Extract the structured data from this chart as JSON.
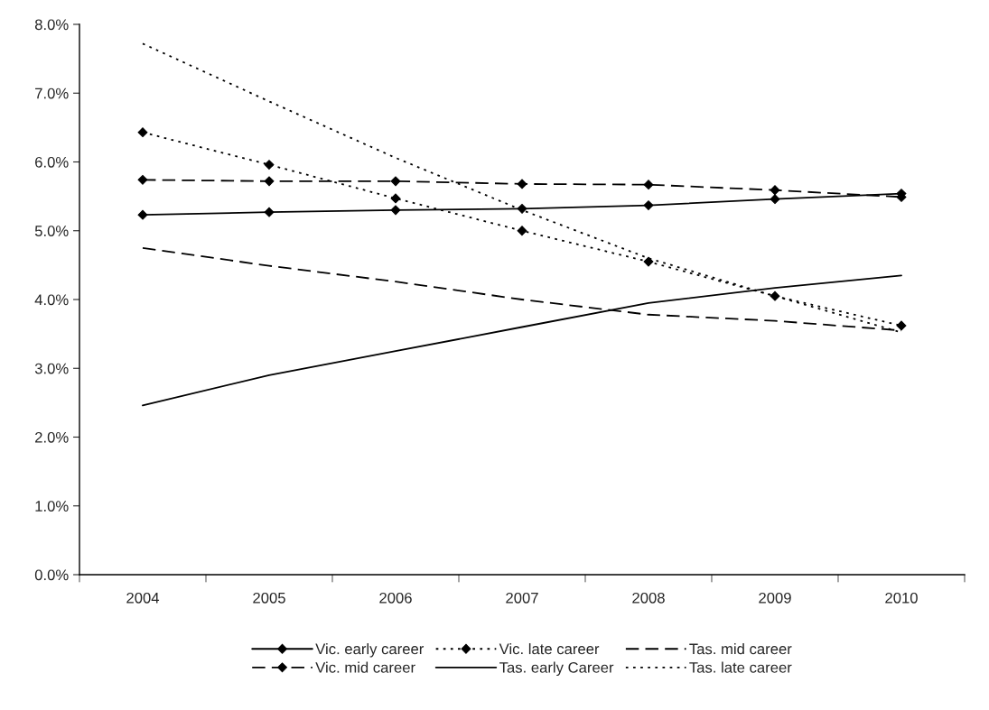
{
  "chart_data": {
    "type": "line",
    "categories": [
      "2004",
      "2005",
      "2006",
      "2007",
      "2008",
      "2009",
      "2010"
    ],
    "ylim": [
      0,
      8
    ],
    "yticks": [
      {
        "value": 0,
        "label": "0.0%"
      },
      {
        "value": 1,
        "label": "1.0%"
      },
      {
        "value": 2,
        "label": "2.0%"
      },
      {
        "value": 3,
        "label": "3.0%"
      },
      {
        "value": 4,
        "label": "4.0%"
      },
      {
        "value": 5,
        "label": "5.0%"
      },
      {
        "value": 6,
        "label": "6.0%"
      },
      {
        "value": 7,
        "label": "7.0%"
      },
      {
        "value": 8,
        "label": "8.0%"
      }
    ],
    "grid": false,
    "legend": "bottom",
    "series": [
      {
        "name": "Vic. early career",
        "color": "#000000",
        "marker": "diamond",
        "line_style": "solid",
        "values": [
          5.23,
          5.27,
          5.3,
          5.32,
          5.37,
          5.46,
          5.54
        ]
      },
      {
        "name": "Vic. mid career",
        "color": "#000000",
        "marker": "diamond",
        "line_style": "dashed",
        "values": [
          5.74,
          5.72,
          5.72,
          5.68,
          5.67,
          5.59,
          5.49
        ]
      },
      {
        "name": "Vic. late career",
        "color": "#000000",
        "marker": "diamond",
        "line_style": "dotted",
        "values": [
          6.43,
          5.96,
          5.47,
          5.0,
          4.55,
          4.05,
          3.62
        ]
      },
      {
        "name": "Tas. early Career",
        "color": "#000000",
        "marker": "none",
        "line_style": "solid",
        "values": [
          2.46,
          2.9,
          3.25,
          3.6,
          3.95,
          4.17,
          4.35
        ]
      },
      {
        "name": "Tas. mid career",
        "color": "#000000",
        "marker": "none",
        "line_style": "dashed",
        "values": [
          4.75,
          4.49,
          4.26,
          4.0,
          3.78,
          3.69,
          3.55
        ]
      },
      {
        "name": "Tas. late career",
        "color": "#000000",
        "marker": "none",
        "line_style": "dotted",
        "values": [
          7.72,
          6.88,
          6.06,
          5.3,
          4.6,
          4.05,
          3.52
        ]
      }
    ]
  }
}
